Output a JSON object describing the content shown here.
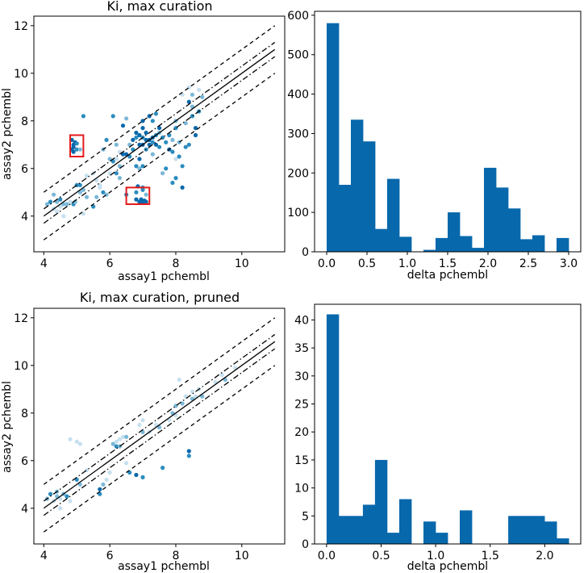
{
  "chart_data": [
    {
      "type": "scatter",
      "panel": "top-left",
      "title": "Ki, max curation",
      "xlabel": "assay1 pchembl",
      "ylabel": "assay2 pchembl",
      "xlim": [
        3.7,
        11.3
      ],
      "ylim": [
        2.5,
        12.4
      ],
      "xticks": [
        "4",
        "6",
        "8",
        "10"
      ],
      "yticks": [
        "4",
        "6",
        "8",
        "10",
        "12"
      ],
      "reference_lines": [
        {
          "style": "solid",
          "offset": 0
        },
        {
          "style": "dashdot",
          "offset": 0.3
        },
        {
          "style": "dashdot",
          "offset": -0.3
        },
        {
          "style": "dashed",
          "offset": 1
        },
        {
          "style": "dashed",
          "offset": -1
        }
      ],
      "highlight_boxes": [
        {
          "x": [
            4.8,
            5.2
          ],
          "y": [
            6.5,
            7.4
          ]
        },
        {
          "x": [
            6.5,
            7.2
          ],
          "y": [
            4.5,
            5.2
          ]
        }
      ],
      "points": [
        [
          4.1,
          4.5,
          2
        ],
        [
          4.2,
          4.6,
          1
        ],
        [
          4.3,
          4.3,
          3
        ],
        [
          4.4,
          4.6,
          2
        ],
        [
          4.5,
          4.4,
          3
        ],
        [
          4.6,
          4.5,
          2
        ],
        [
          4.5,
          4.7,
          1
        ],
        [
          4.7,
          4.5,
          2
        ],
        [
          4.8,
          4.6,
          3
        ],
        [
          4.6,
          4.0,
          3
        ],
        [
          4.3,
          4.9,
          2
        ],
        [
          4.9,
          4.5,
          1
        ],
        [
          4.95,
          4.6,
          2
        ],
        [
          4.4,
          4.2,
          3
        ],
        [
          5.0,
          5.3,
          1
        ],
        [
          5.2,
          5.1,
          2
        ],
        [
          5.1,
          5.3,
          1
        ],
        [
          5.3,
          4.8,
          2
        ],
        [
          5.5,
          5.8,
          3
        ],
        [
          5.6,
          4.8,
          2
        ],
        [
          5.8,
          5.0,
          1
        ],
        [
          5.9,
          4.9,
          2
        ],
        [
          5.7,
          5.2,
          3
        ],
        [
          5.2,
          4.1,
          3
        ],
        [
          5.2,
          8.2,
          1
        ],
        [
          5.5,
          4.4,
          1
        ],
        [
          5.7,
          5.3,
          3
        ],
        [
          4.85,
          7.2,
          0
        ],
        [
          4.9,
          7.0,
          0
        ],
        [
          4.85,
          6.8,
          0
        ],
        [
          4.9,
          6.9,
          0
        ],
        [
          4.95,
          7.1,
          0
        ],
        [
          4.9,
          6.7,
          0
        ],
        [
          5.0,
          6.8,
          1
        ],
        [
          5.1,
          6.8,
          2
        ],
        [
          5.0,
          7.05,
          1
        ],
        [
          6.8,
          4.7,
          0
        ],
        [
          6.9,
          4.6,
          0
        ],
        [
          7.0,
          4.6,
          0
        ],
        [
          7.05,
          4.65,
          0
        ],
        [
          7.1,
          4.6,
          0
        ],
        [
          6.95,
          4.7,
          0
        ],
        [
          6.8,
          5.0,
          1
        ],
        [
          7.0,
          5.1,
          1
        ],
        [
          7.1,
          4.9,
          2
        ],
        [
          6.85,
          5.25,
          0
        ],
        [
          5.8,
          6.8,
          2
        ],
        [
          5.9,
          7.2,
          1
        ],
        [
          6.0,
          6.4,
          2
        ],
        [
          6.1,
          6.3,
          1
        ],
        [
          6.1,
          8.2,
          1
        ],
        [
          6.2,
          7.0,
          2
        ],
        [
          6.2,
          5.8,
          1
        ],
        [
          6.3,
          5.6,
          2
        ],
        [
          6.3,
          6.7,
          3
        ],
        [
          6.4,
          6.6,
          0
        ],
        [
          6.5,
          6.6,
          0
        ],
        [
          6.4,
          7.8,
          0
        ],
        [
          6.5,
          8.1,
          2
        ],
        [
          6.6,
          6.5,
          1
        ],
        [
          6.6,
          7.0,
          2
        ],
        [
          6.5,
          4.9,
          1
        ],
        [
          6.7,
          6.8,
          1
        ],
        [
          6.7,
          7.2,
          0
        ],
        [
          6.8,
          7.5,
          0
        ],
        [
          6.8,
          7.3,
          1
        ],
        [
          6.8,
          6.1,
          1
        ],
        [
          6.9,
          7.4,
          0
        ],
        [
          6.9,
          7.0,
          0
        ],
        [
          6.9,
          6.4,
          0
        ],
        [
          6.9,
          6.0,
          2
        ],
        [
          7.0,
          7.0,
          0
        ],
        [
          7.0,
          7.3,
          1
        ],
        [
          7.0,
          7.7,
          0
        ],
        [
          7.0,
          8.0,
          0
        ],
        [
          7.0,
          6.1,
          1
        ],
        [
          7.0,
          5.2,
          1
        ],
        [
          7.1,
          7.2,
          0
        ],
        [
          7.1,
          7.5,
          0
        ],
        [
          7.1,
          6.8,
          1
        ],
        [
          7.2,
          7.0,
          0
        ],
        [
          7.2,
          7.2,
          0
        ],
        [
          7.2,
          8.2,
          0
        ],
        [
          7.3,
          7.1,
          1
        ],
        [
          7.3,
          7.3,
          0
        ],
        [
          7.3,
          6.6,
          2
        ],
        [
          7.3,
          8.0,
          1
        ],
        [
          7.4,
          7.0,
          0
        ],
        [
          7.4,
          7.4,
          1
        ],
        [
          7.4,
          8.3,
          1
        ],
        [
          7.5,
          7.5,
          2
        ],
        [
          7.5,
          6.9,
          1
        ],
        [
          7.5,
          7.7,
          0
        ],
        [
          7.6,
          5.8,
          2
        ],
        [
          7.6,
          7.3,
          1
        ],
        [
          7.7,
          7.1,
          1
        ],
        [
          7.8,
          6.8,
          0
        ],
        [
          7.8,
          7.4,
          1
        ],
        [
          7.9,
          7.2,
          2
        ],
        [
          7.9,
          6.7,
          1
        ],
        [
          7.9,
          5.4,
          1
        ],
        [
          7.7,
          6.0,
          1
        ],
        [
          8.0,
          8.0,
          2
        ],
        [
          8.0,
          7.7,
          1
        ],
        [
          8.0,
          6.4,
          3
        ],
        [
          8.0,
          5.6,
          1
        ],
        [
          8.1,
          6.5,
          1
        ],
        [
          8.1,
          7.1,
          2
        ],
        [
          8.2,
          6.1,
          1
        ],
        [
          8.2,
          9.1,
          3
        ],
        [
          8.2,
          5.2,
          0
        ],
        [
          8.3,
          7.9,
          2
        ],
        [
          8.3,
          6.9,
          1
        ],
        [
          8.4,
          7.0,
          1
        ],
        [
          8.4,
          8.8,
          0
        ],
        [
          8.5,
          8.6,
          2
        ],
        [
          8.5,
          8.2,
          1
        ],
        [
          8.6,
          7.7,
          0
        ],
        [
          8.6,
          7.4,
          0
        ],
        [
          8.7,
          8.4,
          1
        ],
        [
          8.7,
          9.3,
          3
        ],
        [
          8.4,
          9.4,
          3
        ],
        [
          8.5,
          9.1,
          2
        ],
        [
          8.8,
          9.0,
          2
        ],
        [
          5.1,
          5.0,
          2
        ],
        [
          5.3,
          5.7,
          3
        ],
        [
          5.6,
          5.5,
          3
        ],
        [
          6.0,
          5.8,
          3
        ],
        [
          6.2,
          6.4,
          3
        ],
        [
          6.3,
          6.1,
          2
        ]
      ]
    },
    {
      "type": "bar",
      "panel": "top-right",
      "title": "",
      "xlabel": "delta pchembl",
      "ylabel": "",
      "xlim": [
        -0.15,
        3.15
      ],
      "ylim": [
        0,
        610
      ],
      "xticks": [
        "0.0",
        "0.5",
        "1.0",
        "1.5",
        "2.0",
        "2.5",
        "3.0"
      ],
      "yticks": [
        "0",
        "100",
        "200",
        "300",
        "400",
        "500",
        "600"
      ],
      "bin_width": 0.15,
      "bin_start": 0,
      "values": [
        580,
        170,
        335,
        280,
        58,
        185,
        38,
        0,
        5,
        35,
        100,
        40,
        10,
        213,
        163,
        110,
        32,
        42,
        0,
        35
      ]
    },
    {
      "type": "scatter",
      "panel": "bottom-left",
      "title": "Ki, max curation, pruned",
      "xlabel": "assay1 pchembl",
      "ylabel": "assay2 pchembl",
      "xlim": [
        3.7,
        11.3
      ],
      "ylim": [
        2.5,
        12.4
      ],
      "xticks": [
        "4",
        "6",
        "8",
        "10"
      ],
      "yticks": [
        "4",
        "6",
        "8",
        "10",
        "12"
      ],
      "reference_lines": [
        {
          "style": "solid",
          "offset": 0
        },
        {
          "style": "dashdot",
          "offset": 0.3
        },
        {
          "style": "dashdot",
          "offset": -0.3
        },
        {
          "style": "dashed",
          "offset": 1
        },
        {
          "style": "dashed",
          "offset": -1
        }
      ],
      "highlight_boxes": [],
      "points": [
        [
          4.1,
          4.4,
          2
        ],
        [
          4.2,
          4.6,
          1
        ],
        [
          4.3,
          4.3,
          3
        ],
        [
          4.4,
          4.5,
          2
        ],
        [
          4.5,
          4.4,
          3
        ],
        [
          4.6,
          4.6,
          2
        ],
        [
          4.5,
          4.0,
          3
        ],
        [
          4.7,
          4.5,
          1
        ],
        [
          4.8,
          4.3,
          3
        ],
        [
          4.4,
          4.7,
          2
        ],
        [
          4.8,
          6.9,
          3
        ],
        [
          5.0,
          6.8,
          3
        ],
        [
          5.1,
          6.7,
          3
        ],
        [
          5.0,
          5.2,
          1
        ],
        [
          5.1,
          5.0,
          2
        ],
        [
          5.3,
          5.6,
          3
        ],
        [
          5.7,
          4.6,
          1
        ],
        [
          5.7,
          4.8,
          0
        ],
        [
          5.8,
          5.0,
          2
        ],
        [
          5.9,
          5.2,
          3
        ],
        [
          6.0,
          5.5,
          3
        ],
        [
          6.1,
          6.7,
          2
        ],
        [
          6.2,
          6.6,
          1
        ],
        [
          6.2,
          6.8,
          3
        ],
        [
          6.3,
          6.6,
          2
        ],
        [
          6.3,
          6.9,
          3
        ],
        [
          6.4,
          7.0,
          3
        ],
        [
          6.5,
          7.0,
          2
        ],
        [
          6.5,
          5.9,
          3
        ],
        [
          6.6,
          5.5,
          1
        ],
        [
          6.8,
          5.4,
          0
        ],
        [
          7.0,
          5.3,
          1
        ],
        [
          6.9,
          7.5,
          3
        ],
        [
          7.0,
          7.7,
          3
        ],
        [
          7.0,
          7.2,
          2
        ],
        [
          7.2,
          7.2,
          3
        ],
        [
          7.4,
          7.5,
          3
        ],
        [
          7.5,
          7.4,
          2
        ],
        [
          7.6,
          5.7,
          1
        ],
        [
          7.8,
          7.7,
          3
        ],
        [
          7.9,
          8.0,
          2
        ],
        [
          8.0,
          7.9,
          3
        ],
        [
          8.0,
          8.3,
          2
        ],
        [
          8.1,
          9.4,
          3
        ],
        [
          8.2,
          8.4,
          2
        ],
        [
          8.3,
          8.7,
          3
        ],
        [
          8.4,
          6.4,
          0
        ],
        [
          8.4,
          6.2,
          1
        ],
        [
          8.5,
          8.9,
          3
        ],
        [
          8.5,
          8.6,
          2
        ],
        [
          8.6,
          8.7,
          3
        ],
        [
          8.7,
          9.0,
          3
        ],
        [
          8.8,
          8.7,
          2
        ],
        [
          9.2,
          9.3,
          3
        ],
        [
          9.4,
          9.6,
          3
        ],
        [
          9.5,
          9.4,
          2
        ],
        [
          9.8,
          9.9,
          3
        ]
      ]
    },
    {
      "type": "bar",
      "panel": "bottom-right",
      "title": "",
      "xlabel": "delta pchembl",
      "ylabel": "",
      "xlim": [
        -0.11,
        2.33
      ],
      "ylim": [
        0,
        42.8
      ],
      "xticks": [
        "0.0",
        "0.5",
        "1.0",
        "1.5",
        "2.0"
      ],
      "yticks": [
        "0",
        "5",
        "10",
        "15",
        "20",
        "25",
        "30",
        "35",
        "40"
      ],
      "bin_width": 0.111,
      "bin_start": 0,
      "values": [
        41,
        5,
        5,
        7,
        15,
        2,
        8,
        0,
        4,
        2,
        0,
        6,
        0,
        0,
        0,
        5,
        5,
        5,
        4,
        1
      ]
    }
  ],
  "colors": {
    "bar": "#0868ac",
    "point_shades": [
      "#0868ac",
      "#2b8cbe",
      "#7bb8d8",
      "#c6e0ef"
    ],
    "highlight_box": "#e41a1c",
    "axis": "#000000"
  }
}
